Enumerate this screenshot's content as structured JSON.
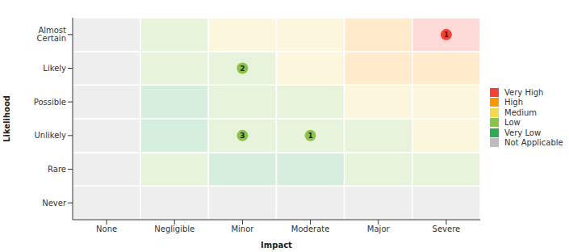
{
  "chart_data": {
    "type": "heatmap",
    "x_label": "Impact",
    "y_label": "Likelihood",
    "x_categories": [
      "None",
      "Negligible",
      "Minor",
      "Moderate",
      "Major",
      "Severe"
    ],
    "y_categories": [
      "Never",
      "Rare",
      "Unlikely",
      "Possible",
      "Likely",
      "Almost Certain"
    ],
    "cells": [
      [
        "Not Applicable",
        "Not Applicable",
        "Not Applicable",
        "Not Applicable",
        "Not Applicable",
        "Not Applicable"
      ],
      [
        "Not Applicable",
        "Low",
        "Very Low",
        "Very Low",
        "Low",
        "Low"
      ],
      [
        "Not Applicable",
        "Very Low",
        "Low",
        "Low",
        "Low",
        "Medium"
      ],
      [
        "Not Applicable",
        "Very Low",
        "Low",
        "Low",
        "Medium",
        "Medium"
      ],
      [
        "Not Applicable",
        "Low",
        "Low",
        "Medium",
        "High",
        "High"
      ],
      [
        "Not Applicable",
        "Low",
        "Medium",
        "Medium",
        "High",
        "Very High"
      ]
    ],
    "points": [
      {
        "x": "Severe",
        "y": "Almost Certain",
        "label": "1"
      },
      {
        "x": "Minor",
        "y": "Likely",
        "label": "2"
      },
      {
        "x": "Minor",
        "y": "Unlikely",
        "label": "3"
      },
      {
        "x": "Moderate",
        "y": "Unlikely",
        "label": "1"
      }
    ],
    "legend_items": [
      {
        "name": "Very High",
        "color": "#f44336"
      },
      {
        "name": "High",
        "color": "#ff9800"
      },
      {
        "name": "Medium",
        "color": "#f2d94e"
      },
      {
        "name": "Low",
        "color": "#8bc34a"
      },
      {
        "name": "Very Low",
        "color": "#2eaa55"
      },
      {
        "name": "Not Applicable",
        "color": "#bdbdbd"
      }
    ],
    "legend": "right"
  }
}
